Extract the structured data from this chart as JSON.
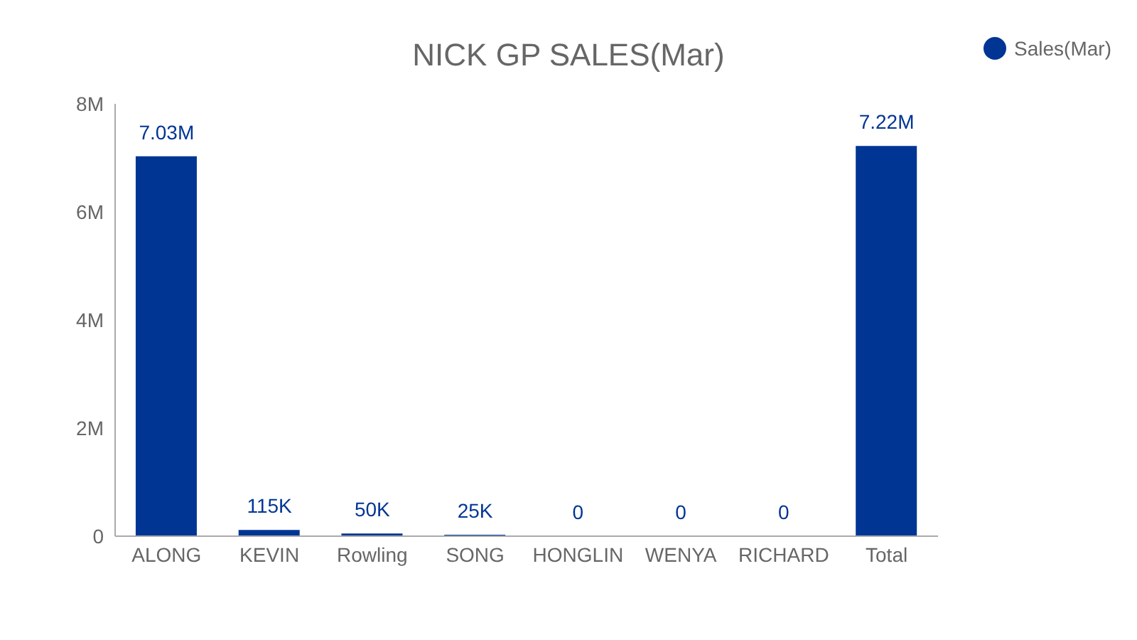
{
  "chart_data": {
    "type": "bar",
    "title": "NICK GP SALES(Mar)",
    "categories": [
      "ALONG",
      "KEVIN",
      "Rowling",
      "SONG",
      "HONGLIN",
      "WENYA",
      "RICHARD",
      "Total"
    ],
    "series": [
      {
        "name": "Sales(Mar)",
        "color": "#003594",
        "values": [
          7030000,
          115000,
          50000,
          25000,
          0,
          0,
          0,
          7220000
        ],
        "value_labels": [
          "7.03M",
          "115K",
          "50K",
          "25K",
          "0",
          "0",
          "0",
          "7.22M"
        ]
      }
    ],
    "ylim": [
      0,
      8000000
    ],
    "yticks": [
      {
        "value": 0,
        "label": "0"
      },
      {
        "value": 2000000,
        "label": "2M"
      },
      {
        "value": 4000000,
        "label": "4M"
      },
      {
        "value": 6000000,
        "label": "6M"
      },
      {
        "value": 8000000,
        "label": "8M"
      }
    ],
    "grid": false,
    "legend": "top right"
  }
}
